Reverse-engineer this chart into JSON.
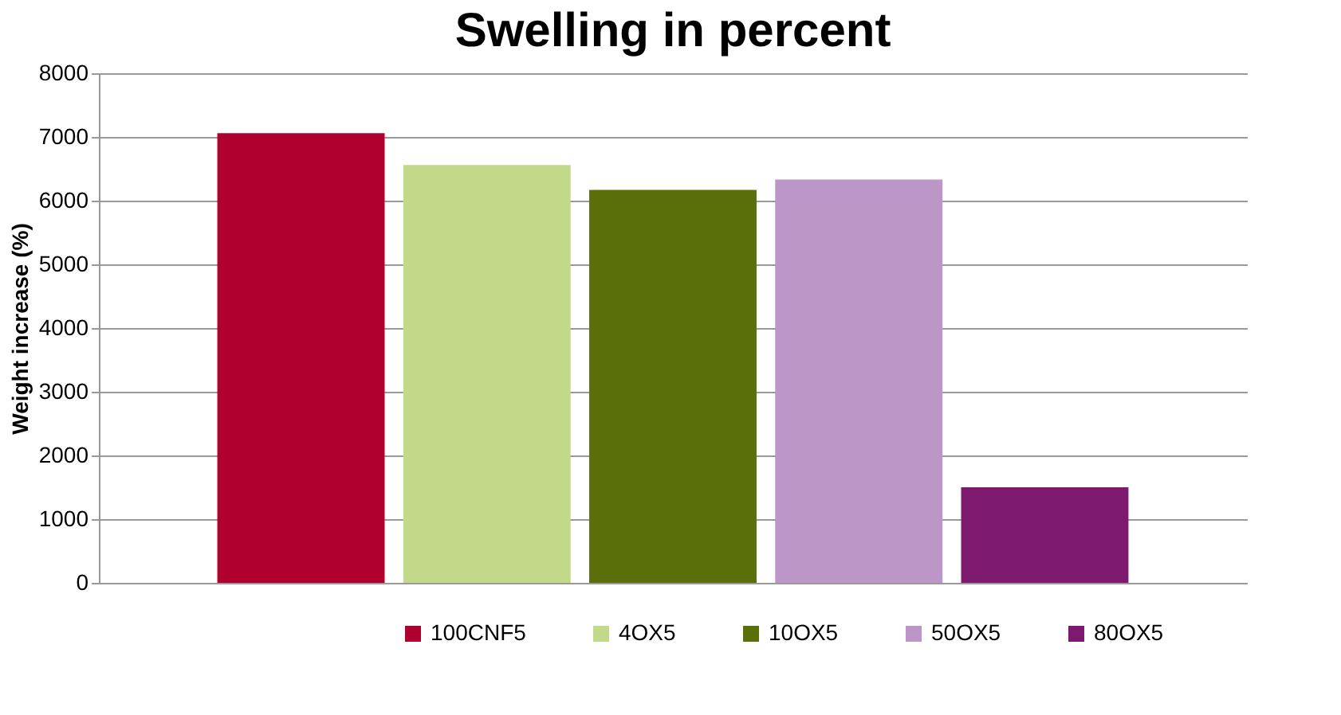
{
  "chart_data": {
    "type": "bar",
    "title": "Swelling in percent",
    "ylabel": "Weight increase (%)",
    "categories": [
      null
    ],
    "series": [
      {
        "name": "100CNF5",
        "color": "#b00030",
        "values": [
          7060
        ]
      },
      {
        "name": "4OX5",
        "color": "#c3d98a",
        "values": [
          6560
        ]
      },
      {
        "name": "10OX5",
        "color": "#5a6e0a",
        "values": [
          6170
        ]
      },
      {
        "name": "50OX5",
        "color": "#bb96c6",
        "values": [
          6330
        ]
      },
      {
        "name": "80OX5",
        "color": "#7d1a70",
        "values": [
          1500
        ]
      }
    ],
    "ylim": [
      0,
      8000
    ],
    "yticks": [
      0,
      1000,
      2000,
      3000,
      4000,
      5000,
      6000,
      7000,
      8000
    ],
    "grid": "y",
    "legend": "bottom"
  }
}
